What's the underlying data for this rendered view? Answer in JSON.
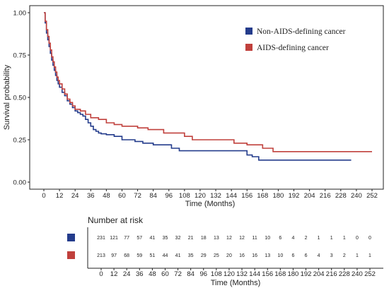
{
  "chart_data": [
    {
      "type": "line",
      "subtype": "kaplan-meier step",
      "title": "",
      "xlabel": "Time (Months)",
      "ylabel": "Survival probability",
      "xlim": [
        0,
        252
      ],
      "ylim": [
        0,
        1
      ],
      "x_ticks": [
        0,
        12,
        24,
        36,
        48,
        60,
        72,
        84,
        96,
        108,
        120,
        132,
        144,
        156,
        168,
        180,
        192,
        204,
        216,
        228,
        240,
        252
      ],
      "y_ticks": [
        0.0,
        0.25,
        0.5,
        0.75,
        1.0
      ],
      "y_tick_labels": [
        "0.00",
        "0.25",
        "0.50",
        "0.75",
        "1.00"
      ],
      "grid": false,
      "legend_position": "top-right",
      "series": [
        {
          "name": "Non-AIDS-defining cancer",
          "color": "#243c8c",
          "points": [
            [
              0,
              1.0
            ],
            [
              1,
              0.94
            ],
            [
              2,
              0.88
            ],
            [
              3,
              0.84
            ],
            [
              4,
              0.8
            ],
            [
              5,
              0.76
            ],
            [
              6,
              0.72
            ],
            [
              7,
              0.69
            ],
            [
              8,
              0.66
            ],
            [
              9,
              0.63
            ],
            [
              10,
              0.6
            ],
            [
              11,
              0.58
            ],
            [
              12,
              0.56
            ],
            [
              14,
              0.53
            ],
            [
              16,
              0.51
            ],
            [
              18,
              0.48
            ],
            [
              20,
              0.46
            ],
            [
              22,
              0.44
            ],
            [
              24,
              0.42
            ],
            [
              26,
              0.41
            ],
            [
              28,
              0.4
            ],
            [
              30,
              0.39
            ],
            [
              32,
              0.37
            ],
            [
              34,
              0.35
            ],
            [
              36,
              0.33
            ],
            [
              38,
              0.31
            ],
            [
              40,
              0.3
            ],
            [
              42,
              0.29
            ],
            [
              44,
              0.285
            ],
            [
              48,
              0.28
            ],
            [
              54,
              0.27
            ],
            [
              60,
              0.25
            ],
            [
              70,
              0.24
            ],
            [
              76,
              0.23
            ],
            [
              84,
              0.22
            ],
            [
              98,
              0.2
            ],
            [
              104,
              0.185
            ],
            [
              156,
              0.16
            ],
            [
              160,
              0.15
            ],
            [
              165,
              0.13
            ],
            [
              236,
              0.13
            ]
          ]
        },
        {
          "name": "AIDS-defining cancer",
          "color": "#c0403c",
          "points": [
            [
              0,
              1.0
            ],
            [
              1,
              0.95
            ],
            [
              2,
              0.9
            ],
            [
              3,
              0.86
            ],
            [
              4,
              0.82
            ],
            [
              5,
              0.78
            ],
            [
              6,
              0.74
            ],
            [
              7,
              0.71
            ],
            [
              8,
              0.68
            ],
            [
              9,
              0.65
            ],
            [
              10,
              0.62
            ],
            [
              11,
              0.6
            ],
            [
              12,
              0.58
            ],
            [
              14,
              0.55
            ],
            [
              16,
              0.52
            ],
            [
              18,
              0.49
            ],
            [
              20,
              0.47
            ],
            [
              22,
              0.45
            ],
            [
              24,
              0.43
            ],
            [
              28,
              0.42
            ],
            [
              32,
              0.4
            ],
            [
              36,
              0.38
            ],
            [
              42,
              0.37
            ],
            [
              48,
              0.35
            ],
            [
              54,
              0.34
            ],
            [
              60,
              0.33
            ],
            [
              72,
              0.32
            ],
            [
              80,
              0.31
            ],
            [
              92,
              0.29
            ],
            [
              108,
              0.27
            ],
            [
              114,
              0.25
            ],
            [
              146,
              0.23
            ],
            [
              156,
              0.22
            ],
            [
              168,
              0.2
            ],
            [
              176,
              0.18
            ],
            [
              252,
              0.18
            ]
          ]
        }
      ]
    },
    {
      "type": "table",
      "title": "Number at risk",
      "xlabel": "Time (Months)",
      "x_ticks": [
        0,
        12,
        24,
        36,
        48,
        60,
        72,
        84,
        96,
        108,
        120,
        132,
        144,
        156,
        168,
        180,
        192,
        204,
        216,
        228,
        240,
        252
      ],
      "rows": [
        {
          "name": "Non-AIDS-defining cancer",
          "color": "#243c8c",
          "values": [
            "231",
            "121",
            "77",
            "57",
            "41",
            "35",
            "32",
            "21",
            "18",
            "13",
            "12",
            "12",
            "11",
            "10",
            "6",
            "4",
            "2",
            "1",
            "1",
            "1",
            "0",
            "0"
          ]
        },
        {
          "name": "AIDS-defining cancer",
          "color": "#c0403c",
          "values": [
            "213",
            "97",
            "68",
            "59",
            "51",
            "44",
            "41",
            "35",
            "29",
            "25",
            "20",
            "16",
            "16",
            "13",
            "10",
            "6",
            "6",
            "4",
            "3",
            "2",
            "1",
            "1"
          ]
        }
      ]
    }
  ]
}
